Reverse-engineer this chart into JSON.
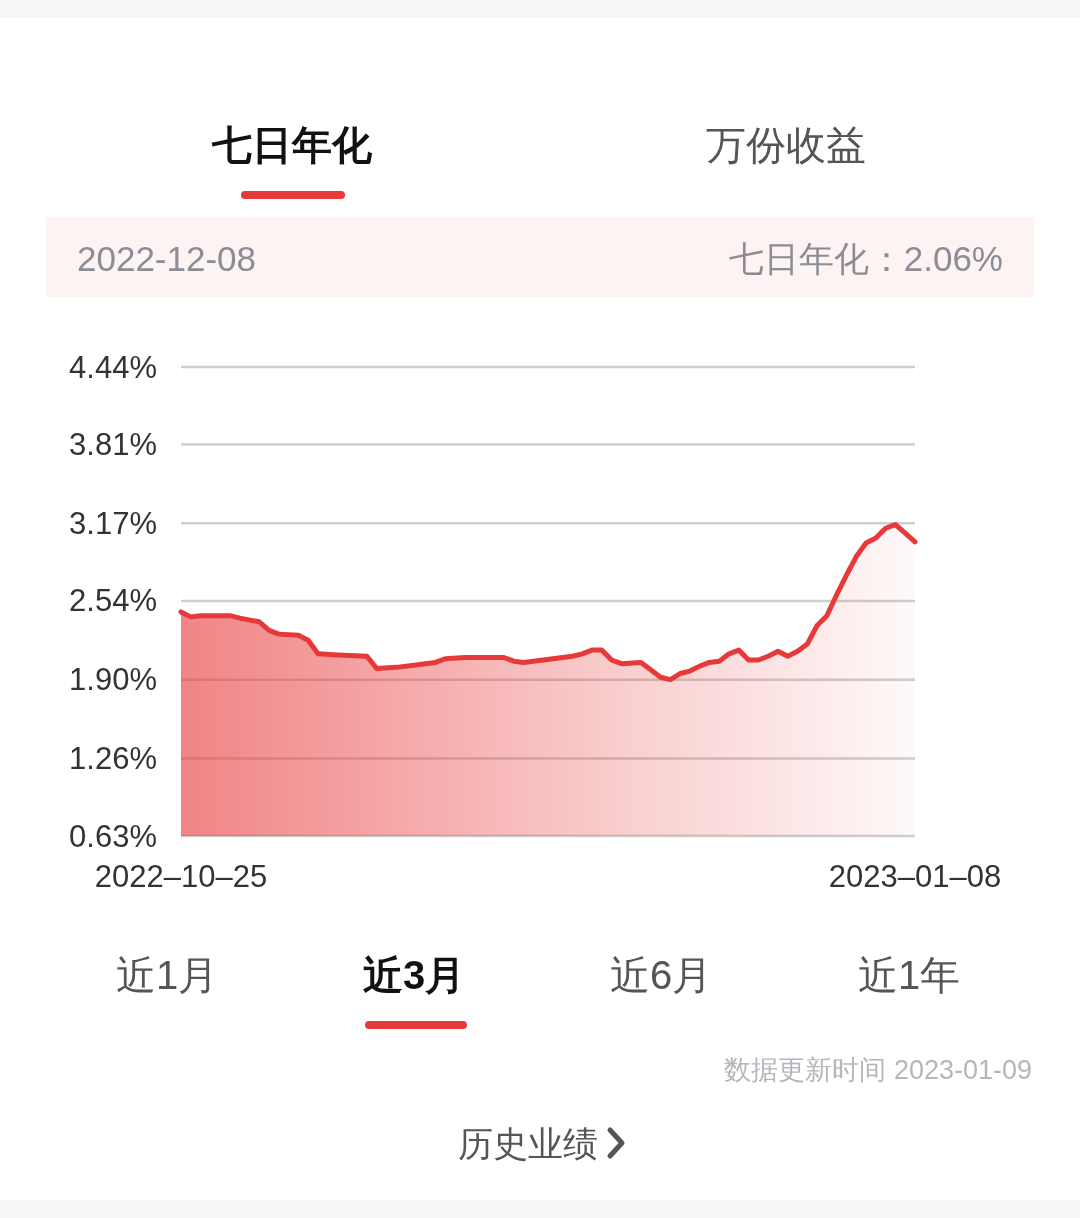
{
  "chart_data": {
    "type": "area",
    "annotations": [
      "七日年化",
      "万份收益",
      "2022-12-08",
      "七日年化：2.06%",
      "近1月",
      "近3月",
      "近6月",
      "近1年",
      "数据更新时间 2023-01-09",
      "历史业绩"
    ],
    "x": [
      "2022-10-25",
      "2022-10-26",
      "2022-10-27",
      "2022-10-30",
      "2022-10-31",
      "2022-11-02",
      "2022-11-03",
      "2022-11-04",
      "2022-11-06",
      "2022-11-07",
      "2022-11-08",
      "2022-11-10",
      "2022-11-13",
      "2022-11-14",
      "2022-11-16",
      "2022-11-18",
      "2022-11-20",
      "2022-11-21",
      "2022-11-23",
      "2022-11-27",
      "2022-11-28",
      "2022-11-29",
      "2022-11-30",
      "2022-12-02",
      "2022-12-04",
      "2022-12-05",
      "2022-12-06",
      "2022-12-07",
      "2022-12-08",
      "2022-12-09",
      "2022-12-11",
      "2022-12-12",
      "2022-12-13",
      "2022-12-14",
      "2022-12-15",
      "2022-12-16",
      "2022-12-17",
      "2022-12-18",
      "2022-12-19",
      "2022-12-20",
      "2022-12-21",
      "2022-12-22",
      "2022-12-23",
      "2022-12-24",
      "2022-12-25",
      "2022-12-26",
      "2022-12-27",
      "2022-12-28",
      "2022-12-29",
      "2022-12-30",
      "2022-12-31",
      "2023-01-01",
      "2023-01-02",
      "2023-01-03",
      "2023-01-04",
      "2023-01-05",
      "2023-01-06",
      "2023-01-07",
      "2023-01-08"
    ],
    "series": [
      {
        "color": "#e8393a",
        "values": [
          2.45,
          2.41,
          2.42,
          2.42,
          2.4,
          2.37,
          2.3,
          2.27,
          2.26,
          2.22,
          2.11,
          2.1,
          2.09,
          1.99,
          2.0,
          2.02,
          2.04,
          2.07,
          2.08,
          2.08,
          2.05,
          2.04,
          2.05,
          2.07,
          2.09,
          2.11,
          2.14,
          2.14,
          2.06,
          2.03,
          2.04,
          1.98,
          1.92,
          1.9,
          1.95,
          1.97,
          2.01,
          2.04,
          2.05,
          2.11,
          2.14,
          2.06,
          2.06,
          2.09,
          2.13,
          2.09,
          2.13,
          2.19,
          2.34,
          2.42,
          2.59,
          2.75,
          2.9,
          3.01,
          3.05,
          3.13,
          3.16,
          3.09,
          3.02
        ]
      }
    ],
    "ylim": [
      0.63,
      4.44
    ],
    "yticks": [
      {
        "value": 0.63,
        "label": "0.63%"
      },
      {
        "value": 1.26,
        "label": "1.26%"
      },
      {
        "value": 1.9,
        "label": "1.90%"
      },
      {
        "value": 2.54,
        "label": "2.54%"
      },
      {
        "value": 3.17,
        "label": "3.17%"
      },
      {
        "value": 3.81,
        "label": "3.81%"
      },
      {
        "value": 4.44,
        "label": "4.44%"
      }
    ],
    "xlim": [
      "2022-10-25",
      "2023-01-08"
    ],
    "xticks": [
      {
        "value": "2022-10-25",
        "label": "2022–10–25"
      },
      {
        "value": "2023-01-08",
        "label": "2023–01–08"
      }
    ],
    "grid": "y"
  }
}
